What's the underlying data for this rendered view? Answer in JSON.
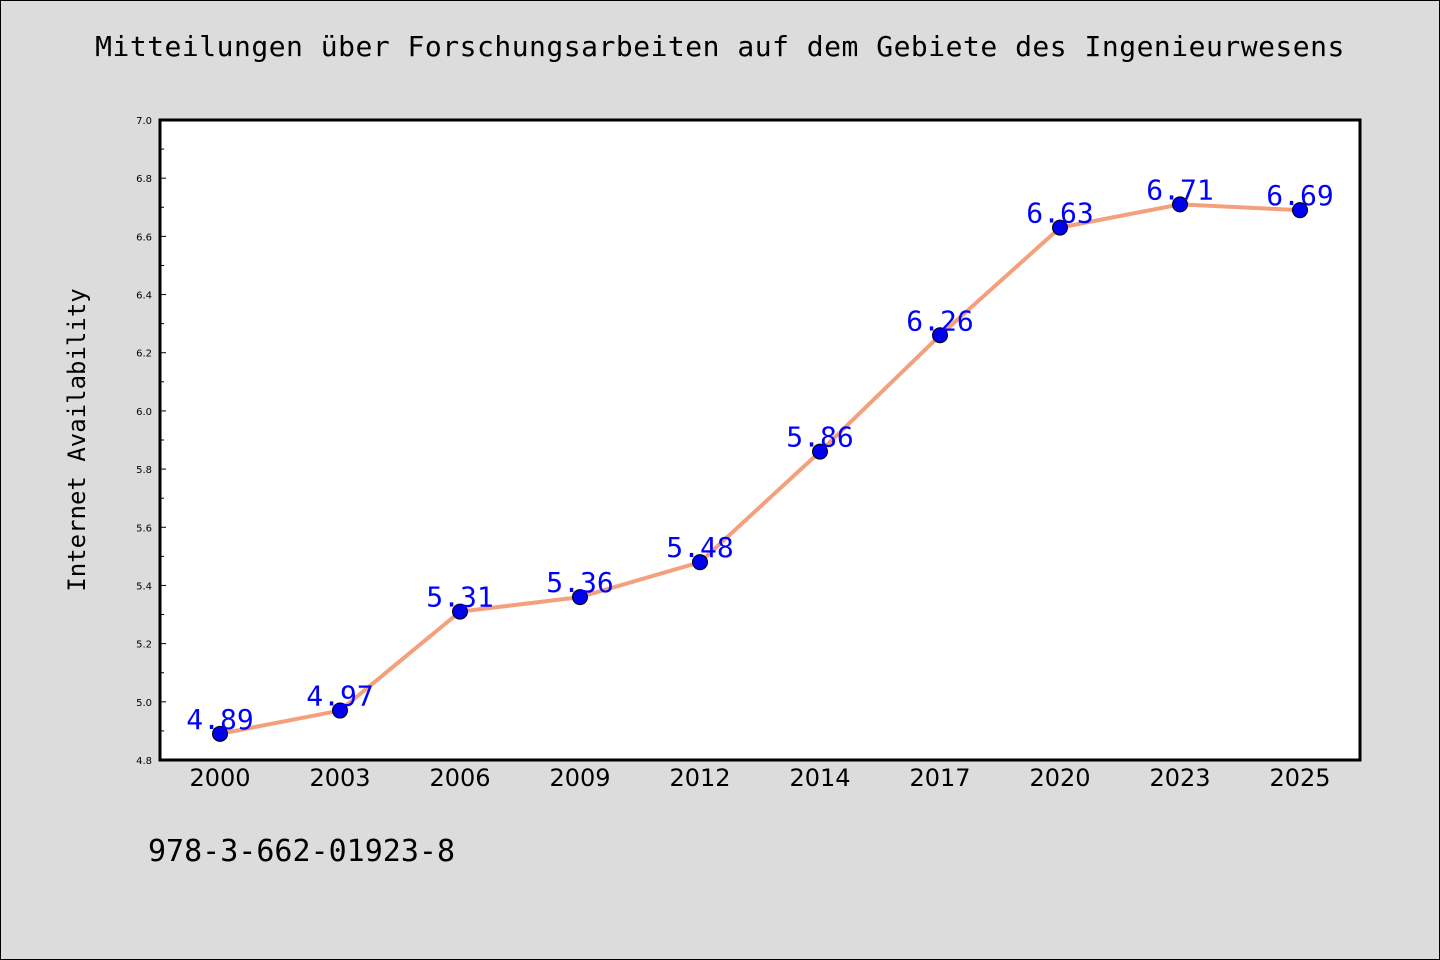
{
  "chart_data": {
    "type": "line",
    "title": "Mitteilungen über Forschungsarbeiten auf dem Gebiete des Ingenieurwesens",
    "xlabel": "",
    "ylabel": "Internet Availability",
    "categories": [
      "2000",
      "2003",
      "2006",
      "2009",
      "2012",
      "2014",
      "2017",
      "2020",
      "2023",
      "2025"
    ],
    "series": [
      {
        "values": [
          4.89,
          4.97,
          5.31,
          5.36,
          5.48,
          5.86,
          6.26,
          6.63,
          6.71,
          6.69
        ]
      }
    ],
    "data_labels": [
      "4.89",
      "4.97",
      "5.31",
      "5.36",
      "5.48",
      "5.86",
      "6.26",
      "6.63",
      "6.71",
      "6.69"
    ],
    "ylim": [
      4.8,
      7.0
    ],
    "yticks": [
      "4.8",
      "5.0",
      "5.2",
      "5.4",
      "5.6",
      "5.8",
      "6.0",
      "6.2",
      "6.4",
      "6.6",
      "6.8",
      "7.0"
    ],
    "grid": false,
    "colors": {
      "line": "#f4a07c",
      "marker": "#0000ee",
      "data_label": "#0000ff",
      "background": "#dcdcdc",
      "plot_area": "#ffffff"
    }
  },
  "footer": {
    "isbn": "978-3-662-01923-8"
  }
}
